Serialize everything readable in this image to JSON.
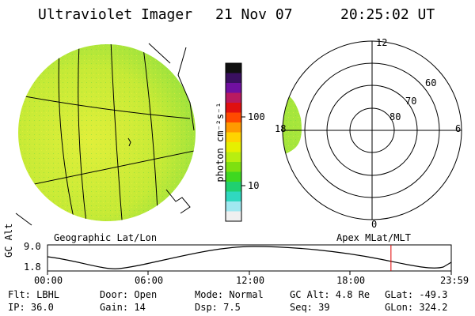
{
  "header": {
    "instrument": "Ultraviolet Imager",
    "date": "21 Nov 07",
    "time": "20:25:02 UT"
  },
  "left_panel": {
    "label": "Geographic Lat/Lon"
  },
  "right_panel": {
    "label": "Apex MLat/MLT",
    "mlt_labels": {
      "top": "12",
      "bottom": "0",
      "left": "18",
      "right": "6"
    },
    "lat_labels": [
      "60",
      "70",
      "80"
    ]
  },
  "colorbar": {
    "unit_label": "photon cm⁻²s⁻¹",
    "tick_labels": [
      "100",
      "10"
    ],
    "colors": [
      "#101010",
      "#3a1060",
      "#7010a0",
      "#b81a60",
      "#e01010",
      "#ff4a00",
      "#ff9a00",
      "#ffd400",
      "#e6f000",
      "#b8ee10",
      "#7ee010",
      "#3ed820",
      "#20d070",
      "#30d8c0",
      "#a0e8f0",
      "#f0f0f0"
    ]
  },
  "altitude_plot": {
    "ylabel": "GC Alt",
    "ytick_top": "9.0",
    "ytick_bottom": "1.8",
    "xticks": [
      "00:00",
      "06:00",
      "12:00",
      "18:00",
      "23:59"
    ],
    "marker_time": "20:25",
    "marker_color": "#e00000"
  },
  "info": {
    "row1": {
      "flt": "Flt: LBHL",
      "door": "Door: Open",
      "mode": "Mode: Normal",
      "gcalt": "GC Alt: 4.8 Re",
      "glat": "GLat: -49.3"
    },
    "row2": {
      "ip": "IP: 36.0",
      "gain": "Gain: 14",
      "dsp": "Dsp:    7.5",
      "seq": "Seq: 39",
      "glon": "GLon: 324.2"
    }
  },
  "colors": {
    "aurora_green": "#a6e63c",
    "aurora_yellow": "#d4ee3a"
  }
}
